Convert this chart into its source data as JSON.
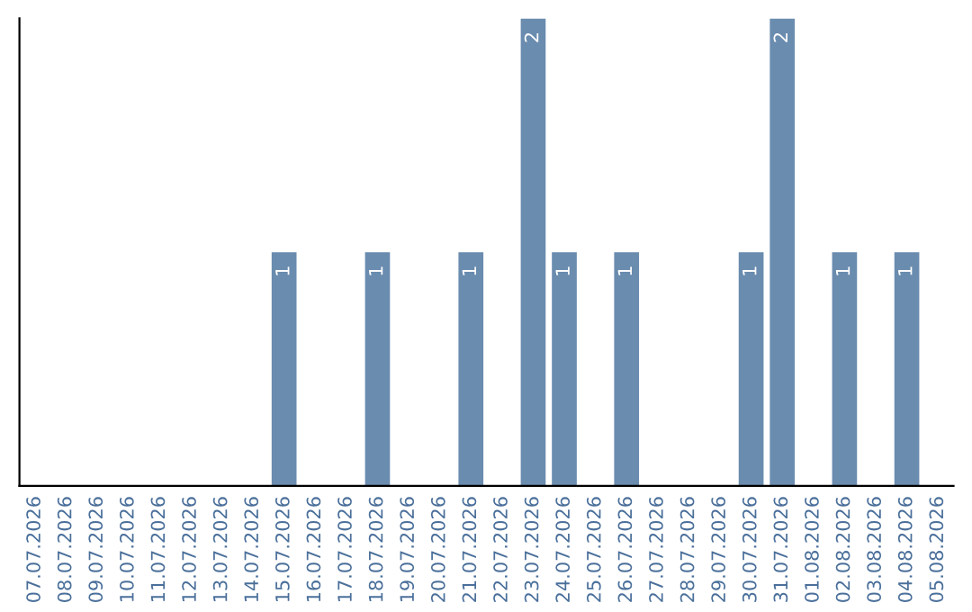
{
  "chart_data": {
    "type": "bar",
    "categories": [
      "07.07.2026",
      "08.07.2026",
      "09.07.2026",
      "10.07.2026",
      "11.07.2026",
      "12.07.2026",
      "13.07.2026",
      "14.07.2026",
      "15.07.2026",
      "16.07.2026",
      "17.07.2026",
      "18.07.2026",
      "19.07.2026",
      "20.07.2026",
      "21.07.2026",
      "22.07.2026",
      "23.07.2026",
      "24.07.2026",
      "25.07.2026",
      "26.07.2026",
      "27.07.2026",
      "28.07.2026",
      "29.07.2026",
      "30.07.2026",
      "31.07.2026",
      "01.08.2026",
      "02.08.2026",
      "03.08.2026",
      "04.08.2026",
      "05.08.2026"
    ],
    "values": [
      0,
      0,
      0,
      0,
      0,
      0,
      0,
      0,
      1,
      0,
      0,
      1,
      0,
      0,
      1,
      0,
      2,
      1,
      0,
      1,
      0,
      0,
      0,
      1,
      2,
      0,
      1,
      0,
      1,
      0
    ],
    "value_labels": [
      null,
      null,
      null,
      null,
      null,
      null,
      null,
      null,
      "1",
      null,
      null,
      "1",
      null,
      null,
      "1",
      null,
      "2",
      "1",
      null,
      "1",
      null,
      null,
      null,
      "1",
      "2",
      null,
      "1",
      null,
      "1",
      null
    ],
    "color": "#6a8caf",
    "tick_labels": "x",
    "grid": false,
    "legend": false
  }
}
